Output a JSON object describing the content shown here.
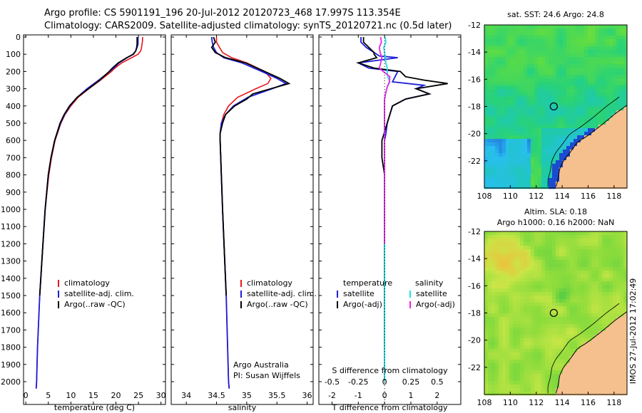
{
  "header": {
    "title_line1": "Argo profile: CS 5901191_196 20-Jul-2012 20120723_468 17.997S 113.354E",
    "title_line2": "Climatology: CARS2009. Satellite-adjusted climatology: synTS_20120721.nc (0.5d later)"
  },
  "colors": {
    "climatology": "#e8161b",
    "satellite": "#1d1ddb",
    "argo": "#000000",
    "satellite_s": "#22e0e8",
    "argo_s": "#ee22e8",
    "land": "#f5c08e"
  },
  "chart_data": [
    {
      "type": "line",
      "name": "temperature-panel",
      "xlabel": "temperature (deg C)",
      "xlim": [
        -0.5,
        31
      ],
      "xticks": [
        0,
        5,
        10,
        15,
        20,
        25,
        30
      ],
      "ylim": [
        0,
        2070
      ],
      "yticks": [
        0,
        100,
        200,
        300,
        400,
        500,
        600,
        700,
        800,
        900,
        1000,
        1100,
        1200,
        1300,
        1400,
        1500,
        1600,
        1700,
        1800,
        1900,
        2000
      ],
      "legend": [
        "climatology",
        "satellite-adj. clim.",
        "Argo(..raw -QC)"
      ],
      "series": [
        {
          "name": "climatology",
          "color": "#e8161b",
          "depth": [
            0,
            20,
            40,
            60,
            80,
            100,
            120,
            150,
            180,
            200,
            250,
            300,
            350,
            400,
            450,
            500,
            600,
            700,
            800,
            1000,
            1200,
            1500,
            1800,
            2000,
            2040
          ],
          "values": [
            25.9,
            25.9,
            25.8,
            25.7,
            25.5,
            24.9,
            23.5,
            21.3,
            19.8,
            19.0,
            16.6,
            14.0,
            11.6,
            10.0,
            8.7,
            7.8,
            6.5,
            5.7,
            5.1,
            4.3,
            3.8,
            3.1,
            2.6,
            2.4,
            2.3
          ]
        },
        {
          "name": "satellite-adj. clim.",
          "color": "#1d1ddb",
          "depth": [
            0,
            20,
            40,
            60,
            80,
            100,
            120,
            150,
            180,
            200,
            250,
            300,
            350,
            400,
            450,
            500,
            600,
            700,
            800,
            1000,
            1200,
            1500,
            1800,
            2000,
            2040
          ],
          "values": [
            24.9,
            24.9,
            24.9,
            24.7,
            24.4,
            23.8,
            22.5,
            20.7,
            19.5,
            18.6,
            16.2,
            13.6,
            11.4,
            9.8,
            8.6,
            7.7,
            6.4,
            5.6,
            5.0,
            4.3,
            3.8,
            3.1,
            2.6,
            2.4,
            2.3
          ]
        },
        {
          "name": "Argo(..raw -QC)",
          "color": "#000000",
          "depth": [
            0,
            20,
            40,
            60,
            80,
            100,
            120,
            150,
            180,
            200,
            250,
            300,
            350,
            400,
            450,
            500,
            600,
            700,
            800,
            1000,
            1200,
            1500
          ],
          "values": [
            24.7,
            24.7,
            24.7,
            24.6,
            24.4,
            23.9,
            22.4,
            20.5,
            19.2,
            18.5,
            16.4,
            13.9,
            11.4,
            9.7,
            8.5,
            7.6,
            6.4,
            5.6,
            5.0,
            4.3,
            3.8,
            3.1
          ]
        }
      ]
    },
    {
      "type": "line",
      "name": "salinity-panel",
      "xlabel": "salinity",
      "xlim": [
        33.75,
        36.1
      ],
      "xticks": [
        34,
        34.5,
        35,
        35.5,
        36
      ],
      "xticklabels": [
        "34",
        "34.5",
        "35",
        "35.5",
        "36"
      ],
      "ylim": [
        0,
        2070
      ],
      "legend": [
        "climatology",
        "satellite-adj. clim.",
        "Argo(..raw -QC)"
      ],
      "annotation": [
        "Argo Australia",
        "PI: Susan Wijffels"
      ],
      "series": [
        {
          "name": "climatology",
          "color": "#e8161b",
          "depth": [
            0,
            30,
            60,
            90,
            120,
            150,
            200,
            240,
            270,
            300,
            350,
            400,
            450,
            500,
            560,
            600,
            800,
            1000,
            1500,
            2000,
            2040
          ],
          "values": [
            34.5,
            34.5,
            34.55,
            34.6,
            34.75,
            35.0,
            35.3,
            35.4,
            35.35,
            35.15,
            34.85,
            34.7,
            34.62,
            34.58,
            34.56,
            34.56,
            34.58,
            34.6,
            34.66,
            34.7,
            34.71
          ]
        },
        {
          "name": "satellite-adj. clim.",
          "color": "#1d1ddb",
          "depth": [
            0,
            30,
            60,
            90,
            120,
            150,
            200,
            240,
            270,
            300,
            350,
            400,
            450,
            500,
            560,
            600,
            800,
            1000,
            1500,
            2000,
            2040
          ],
          "values": [
            34.42,
            34.43,
            34.45,
            34.5,
            34.62,
            34.92,
            35.25,
            35.5,
            35.65,
            35.42,
            35.02,
            34.78,
            34.65,
            34.58,
            34.56,
            34.56,
            34.58,
            34.6,
            34.66,
            34.7,
            34.71
          ]
        },
        {
          "name": "Argo(..raw -QC)",
          "color": "#000000",
          "depth": [
            0,
            30,
            60,
            90,
            120,
            150,
            200,
            240,
            270,
            300,
            330,
            360,
            400,
            450,
            500,
            560,
            600,
            800,
            1000,
            1500
          ],
          "values": [
            34.45,
            34.48,
            34.42,
            34.48,
            34.65,
            34.98,
            35.3,
            35.55,
            35.7,
            35.4,
            35.1,
            35.0,
            34.8,
            34.65,
            34.6,
            34.56,
            34.56,
            34.58,
            34.6,
            34.66
          ]
        }
      ]
    },
    {
      "type": "line",
      "name": "difference-panel",
      "xlabel": "T difference from climatology",
      "xlabel_top": "S difference from climatology",
      "xlim": [
        -2.5,
        2.9
      ],
      "xticks": [
        -2,
        -1,
        0,
        1,
        2
      ],
      "top_ticks": [
        -0.5,
        -0.25,
        0,
        0.25,
        0.5
      ],
      "top_ticklabels": [
        "-0.5",
        "-0.25",
        "0",
        "0.25",
        "0.5"
      ],
      "ylim": [
        0,
        2070
      ],
      "legend_headers": [
        "temperature",
        "salinity"
      ],
      "legend": [
        "satellite",
        "Argo(-adj)",
        "satellite",
        "Argo(-adj)"
      ],
      "series": [
        {
          "name": "T satellite",
          "color": "#1d1ddb",
          "depth": [
            0,
            30,
            60,
            90,
            110,
            120,
            150,
            180,
            200,
            230,
            260,
            280,
            300,
            330,
            360,
            400,
            450,
            500,
            560,
            600,
            800,
            1000,
            1500,
            2000
          ],
          "values": [
            -0.9,
            -0.9,
            -0.7,
            -0.4,
            -0.2,
            0.5,
            -1.0,
            -0.6,
            0.5,
            0.4,
            0.3,
            1.5,
            1.2,
            1.7,
            0.8,
            0.3,
            0.2,
            0.1,
            0.05,
            0.0,
            0.0,
            0.0,
            0.0,
            0.0
          ]
        },
        {
          "name": "T Argo(-adj)",
          "color": "#000000",
          "depth": [
            0,
            30,
            60,
            90,
            100,
            120,
            150,
            180,
            200,
            230,
            250,
            270,
            300,
            330,
            360,
            400,
            450,
            500,
            600,
            700,
            800,
            1000,
            1500,
            1800
          ],
          "values": [
            -0.8,
            -0.8,
            -0.6,
            -0.4,
            -0.4,
            -0.3,
            -1.0,
            -0.4,
            0.6,
            0.8,
            1.5,
            2.4,
            1.2,
            1.7,
            0.8,
            0.3,
            0.2,
            0.1,
            -0.1,
            -0.1,
            0.0,
            0.0,
            0.0,
            0.0
          ]
        },
        {
          "name": "S satellite",
          "color": "#22e0e8",
          "depth": [
            0,
            30,
            60,
            90,
            120,
            150,
            180,
            200,
            230,
            260,
            290,
            320,
            360,
            400,
            450,
            500,
            600,
            800,
            1000,
            1500,
            2000
          ],
          "values": [
            0.02,
            0.05,
            -0.03,
            0.0,
            0.03,
            0.05,
            0.1,
            0.1,
            0.12,
            0.2,
            0.1,
            0.05,
            0.0,
            0.0,
            0.0,
            0.0,
            0.0,
            0.0,
            0.0,
            0.0,
            0.0
          ]
        },
        {
          "name": "S Argo(-adj)",
          "color": "#ee22e8",
          "depth": [
            0,
            30,
            60,
            90,
            120,
            150,
            180,
            200,
            230,
            260,
            290,
            320,
            360,
            400,
            450,
            500,
            600,
            800,
            1000,
            1200
          ],
          "values": [
            -0.15,
            -0.12,
            -0.2,
            -0.17,
            -0.1,
            -0.15,
            -0.2,
            -0.05,
            0.2,
            0.18,
            0.1,
            0.05,
            0.0,
            0.0,
            0.0,
            0.0,
            0.0,
            0.0,
            0.0,
            0.0
          ]
        }
      ]
    },
    {
      "type": "heatmap",
      "name": "sst-map",
      "title": "sat. SST: 24.6  Argo: 24.8",
      "xticks": [
        108,
        110,
        112,
        114,
        116,
        118
      ],
      "yticks": [
        -12,
        -14,
        -16,
        -18,
        -20,
        -22
      ],
      "xlim": [
        108,
        119
      ],
      "ylim": [
        -24,
        -12
      ],
      "marker": {
        "lon": 113.354,
        "lat": -17.997
      }
    },
    {
      "type": "heatmap",
      "name": "sla-map",
      "title_line1": "Altim. SLA: 0.18",
      "title_line2": "Argo h1000: 0.16 h2000: NaN",
      "xticks": [
        108,
        110,
        112,
        114,
        116,
        118
      ],
      "yticks": [
        -12,
        -14,
        -16,
        -18,
        -20,
        -22
      ],
      "xlim": [
        108,
        119
      ],
      "ylim": [
        -24,
        -12
      ],
      "marker": {
        "lon": 113.354,
        "lat": -17.997
      }
    }
  ],
  "footer": {
    "stamp": "IMOS 27-Jul-2012 17:02:49"
  }
}
